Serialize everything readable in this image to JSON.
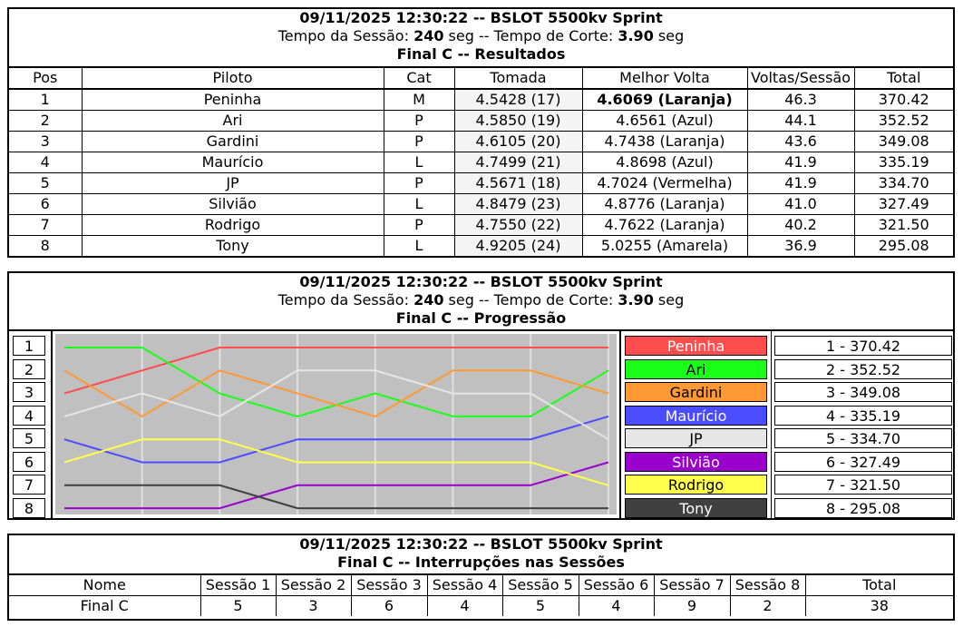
{
  "header": {
    "datetime_title": "09/11/2025 12:30:22 -- BSLOT 5500kv Sprint",
    "session_prefix": "Tempo da Sessão: ",
    "session_value": "240",
    "session_mid": " seg -- Tempo de Corte: ",
    "cut_value": "3.90",
    "cut_suffix": " seg"
  },
  "results": {
    "subtitle": "Final C -- Resultados",
    "columns": [
      "Pos",
      "Piloto",
      "Cat",
      "Tomada",
      "Melhor Volta",
      "Voltas/Sessão",
      "Total"
    ],
    "rows": [
      {
        "pos": "1",
        "piloto": "Peninha",
        "cat": "M",
        "tomada": "4.5428 (17)",
        "melhor": "4.6069 (Laranja)",
        "voltas": "46.3",
        "total": "370.42"
      },
      {
        "pos": "2",
        "piloto": "Ari",
        "cat": "P",
        "tomada": "4.5850 (19)",
        "melhor": "4.6561 (Azul)",
        "voltas": "44.1",
        "total": "352.52"
      },
      {
        "pos": "3",
        "piloto": "Gardini",
        "cat": "P",
        "tomada": "4.6105 (20)",
        "melhor": "4.7438 (Laranja)",
        "voltas": "43.6",
        "total": "349.08"
      },
      {
        "pos": "4",
        "piloto": "Maurício",
        "cat": "L",
        "tomada": "4.7499 (21)",
        "melhor": "4.8698 (Azul)",
        "voltas": "41.9",
        "total": "335.19"
      },
      {
        "pos": "5",
        "piloto": "JP",
        "cat": "P",
        "tomada": "4.5671 (18)",
        "melhor": "4.7024 (Vermelha)",
        "voltas": "41.9",
        "total": "334.70"
      },
      {
        "pos": "6",
        "piloto": "Silvião",
        "cat": "L",
        "tomada": "4.8479 (23)",
        "melhor": "4.8776 (Laranja)",
        "voltas": "41.0",
        "total": "327.49"
      },
      {
        "pos": "7",
        "piloto": "Rodrigo",
        "cat": "P",
        "tomada": "4.7550 (22)",
        "melhor": "4.7622 (Laranja)",
        "voltas": "40.2",
        "total": "321.50"
      },
      {
        "pos": "8",
        "piloto": "Tony",
        "cat": "L",
        "tomada": "4.9205 (24)",
        "melhor": "5.0255 (Amarela)",
        "voltas": "36.9",
        "total": "295.08"
      }
    ]
  },
  "progression": {
    "subtitle": "Final C -- Progressão",
    "positions": [
      "1",
      "2",
      "3",
      "4",
      "5",
      "6",
      "7",
      "8"
    ],
    "pilots": [
      {
        "name": "Peninha",
        "color": "#ff4c4c",
        "text_color": "#ffffff",
        "positions": [
          3,
          2,
          1,
          1,
          1,
          1,
          1,
          1
        ]
      },
      {
        "name": "Ari",
        "color": "#19ff19",
        "text_color": "#000000",
        "positions": [
          1,
          1,
          3,
          4,
          3,
          4,
          4,
          2
        ]
      },
      {
        "name": "Gardini",
        "color": "#ff9933",
        "text_color": "#000000",
        "positions": [
          2,
          4,
          2,
          3,
          4,
          2,
          2,
          3
        ]
      },
      {
        "name": "Maurício",
        "color": "#4c4cff",
        "text_color": "#ffffff",
        "positions": [
          5,
          6,
          6,
          5,
          5,
          5,
          5,
          4
        ]
      },
      {
        "name": "JP",
        "color": "#e6e6e6",
        "text_color": "#000000",
        "positions": [
          4,
          3,
          4,
          2,
          2,
          3,
          3,
          5
        ]
      },
      {
        "name": "Silvião",
        "color": "#9900cc",
        "text_color": "#ffffff",
        "positions": [
          8,
          8,
          8,
          7,
          7,
          7,
          7,
          6
        ]
      },
      {
        "name": "Rodrigo",
        "color": "#ffff4c",
        "text_color": "#000000",
        "positions": [
          6,
          5,
          5,
          6,
          6,
          6,
          6,
          7
        ]
      },
      {
        "name": "Tony",
        "color": "#404040",
        "text_color": "#ffffff",
        "positions": [
          7,
          7,
          7,
          8,
          8,
          8,
          8,
          8
        ]
      }
    ],
    "totals": [
      "1 - 370.42",
      "2 - 352.52",
      "3 - 349.08",
      "4 - 335.19",
      "5 - 334.70",
      "6 - 327.49",
      "7 - 321.50",
      "8 - 295.08"
    ],
    "plot_background": "#c0c0c0"
  },
  "interruptions": {
    "subtitle": "Final C -- Interrupções nas Sessões",
    "columns": [
      "Nome",
      "Sessão 1",
      "Sessão 2",
      "Sessão 3",
      "Sessão 4",
      "Sessão 5",
      "Sessão 6",
      "Sessão 7",
      "Sessão 8",
      "Total"
    ],
    "rows": [
      {
        "nome": "Final C",
        "values": [
          "5",
          "3",
          "6",
          "4",
          "5",
          "4",
          "9",
          "2"
        ],
        "total": "38"
      }
    ]
  }
}
